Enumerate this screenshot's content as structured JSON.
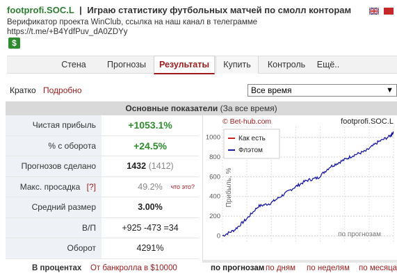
{
  "header": {
    "username": "footprofi.SOC.L",
    "separator": "|",
    "title": "Играю статистику футбольных матчей по смолл конторам",
    "verifier": "Верификатор проекта WinClub, ссылка на наш канал в телеграмме",
    "link": "https://t.me/+B4YdfPuv_dA0ZDYy",
    "badge": "$"
  },
  "nav": {
    "tabs": [
      {
        "label": "Стена"
      },
      {
        "label": "Прогнозы"
      },
      {
        "label": "Результаты"
      },
      {
        "label": "Купить"
      },
      {
        "label": "Контроль"
      },
      {
        "label": "Ещё.."
      }
    ],
    "active": "Результаты"
  },
  "view_switch": {
    "short": "Кратко",
    "detailed": "Подробно"
  },
  "period": {
    "selected": "Все время"
  },
  "main": {
    "title": "Основные показатели",
    "subtitle": "(За все время)"
  },
  "stats": {
    "profit": {
      "label": "Чистая прибыль",
      "value": "+1053.1%"
    },
    "roi": {
      "label": "% с оборота",
      "value": "+24.5%"
    },
    "count": {
      "label": "Прогнозов сделано",
      "value": "1432",
      "extra": "(1412)"
    },
    "drawdown": {
      "label": "Макс. просадка",
      "help": "[?]",
      "value": "49.2%",
      "what": "что это?"
    },
    "avg": {
      "label": "Средний размер",
      "value": "3.00%"
    },
    "wlp": {
      "label": "В/П",
      "value": "+925 -473 =34"
    },
    "turnover": {
      "label": "Оборот",
      "value": "4291%"
    }
  },
  "chart_data": {
    "type": "line",
    "watermark": "© Bet-hub.com",
    "owner": "footprofi.SOC.L",
    "ylabel": "Прибыль, %",
    "xlabel": "по прогнозам",
    "y_ticks": [
      0,
      200,
      400,
      600,
      800,
      1000
    ],
    "ylim": [
      -60,
      1110
    ],
    "x_range": [
      0,
      1432
    ],
    "grid": true,
    "legend_position": "top-left",
    "series": [
      {
        "name": "Как есть",
        "color": "#cc2222",
        "values": []
      },
      {
        "name": "Флэтом",
        "color": "#1a1aa8",
        "x": [
          0,
          100,
          200,
          300,
          400,
          500,
          600,
          700,
          800,
          900,
          1000,
          1100,
          1200,
          1300,
          1400,
          1432
        ],
        "values": [
          0,
          60,
          170,
          300,
          330,
          410,
          490,
          560,
          590,
          700,
          760,
          820,
          860,
          950,
          1010,
          1053
        ]
      }
    ]
  },
  "footer": {
    "pct_title": "В процентах",
    "pct_link": "От банкролла в $10000",
    "graph_tabs": [
      "по прогнозам",
      "по дням",
      "по неделям",
      "по месяцам"
    ],
    "active_graph_tab": "по прогнозам"
  },
  "colors": {
    "accent": "#9b1c1c",
    "green": "#2e8b2e",
    "line": "#1a1aa8"
  }
}
